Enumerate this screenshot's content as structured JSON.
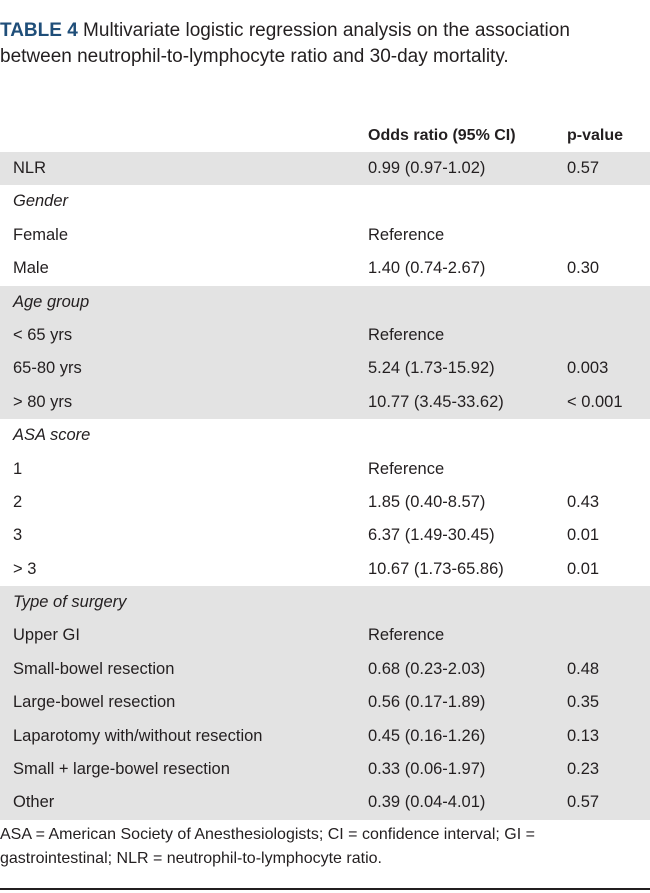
{
  "title": {
    "label": "TABLE 4",
    "text": "Multivariate logistic regression analysis on the association between neutrophil-to-lymphocyte ratio and 30-day mortality."
  },
  "table": {
    "headers": [
      "",
      "Odds ratio (95% CI)",
      "p-value"
    ],
    "rows": [
      {
        "label": "NLR",
        "or": "0.99 (0.97-1.02)",
        "p": "0.57",
        "section": false,
        "shaded": true
      },
      {
        "label": "Gender",
        "or": "",
        "p": "",
        "section": true,
        "shaded": false
      },
      {
        "label": "Female",
        "or": "Reference",
        "p": "",
        "section": false,
        "shaded": false
      },
      {
        "label": "Male",
        "or": "1.40 (0.74-2.67)",
        "p": "0.30",
        "section": false,
        "shaded": false
      },
      {
        "label": "Age group",
        "or": "",
        "p": "",
        "section": true,
        "shaded": true
      },
      {
        "label": "< 65 yrs",
        "or": "Reference",
        "p": "",
        "section": false,
        "shaded": true
      },
      {
        "label": "65-80 yrs",
        "or": "5.24 (1.73-15.92)",
        "p": "0.003",
        "section": false,
        "shaded": true
      },
      {
        "label": "> 80 yrs",
        "or": "10.77 (3.45-33.62)",
        "p": "< 0.001",
        "section": false,
        "shaded": true
      },
      {
        "label": "ASA score",
        "or": "",
        "p": "",
        "section": true,
        "shaded": false
      },
      {
        "label": "1",
        "or": "Reference",
        "p": "",
        "section": false,
        "shaded": false
      },
      {
        "label": "2",
        "or": "1.85 (0.40-8.57)",
        "p": "0.43",
        "section": false,
        "shaded": false
      },
      {
        "label": "3",
        "or": "6.37 (1.49-30.45)",
        "p": "0.01",
        "section": false,
        "shaded": false
      },
      {
        "label": "> 3",
        "or": "10.67 (1.73-65.86)",
        "p": "0.01",
        "section": false,
        "shaded": false
      },
      {
        "label": "Type of surgery",
        "or": "",
        "p": "",
        "section": true,
        "shaded": true
      },
      {
        "label": "Upper GI",
        "or": "Reference",
        "p": "",
        "section": false,
        "shaded": true
      },
      {
        "label": "Small-bowel resection",
        "or": "0.68 (0.23-2.03)",
        "p": "0.48",
        "section": false,
        "shaded": true
      },
      {
        "label": "Large-bowel resection",
        "or": "0.56 (0.17-1.89)",
        "p": "0.35",
        "section": false,
        "shaded": true
      },
      {
        "label": "Laparotomy with/without resection",
        "or": "0.45 (0.16-1.26)",
        "p": "0.13",
        "section": false,
        "shaded": true
      },
      {
        "label": "Small + large-bowel resection",
        "or": "0.33 (0.06-1.97)",
        "p": "0.23",
        "section": false,
        "shaded": true
      },
      {
        "label": "Other",
        "or": "0.39 (0.04-4.01)",
        "p": "0.57",
        "section": false,
        "shaded": true
      }
    ]
  },
  "footnote": "ASA = American Society of Anesthesiologists; CI = confidence interval; GI = gastrointestinal; NLR = neutrophil-to-lymphocyte ratio.",
  "colors": {
    "label_blue": "#1f4e79",
    "shade_gray": "#e3e3e3",
    "text": "#231f20"
  }
}
